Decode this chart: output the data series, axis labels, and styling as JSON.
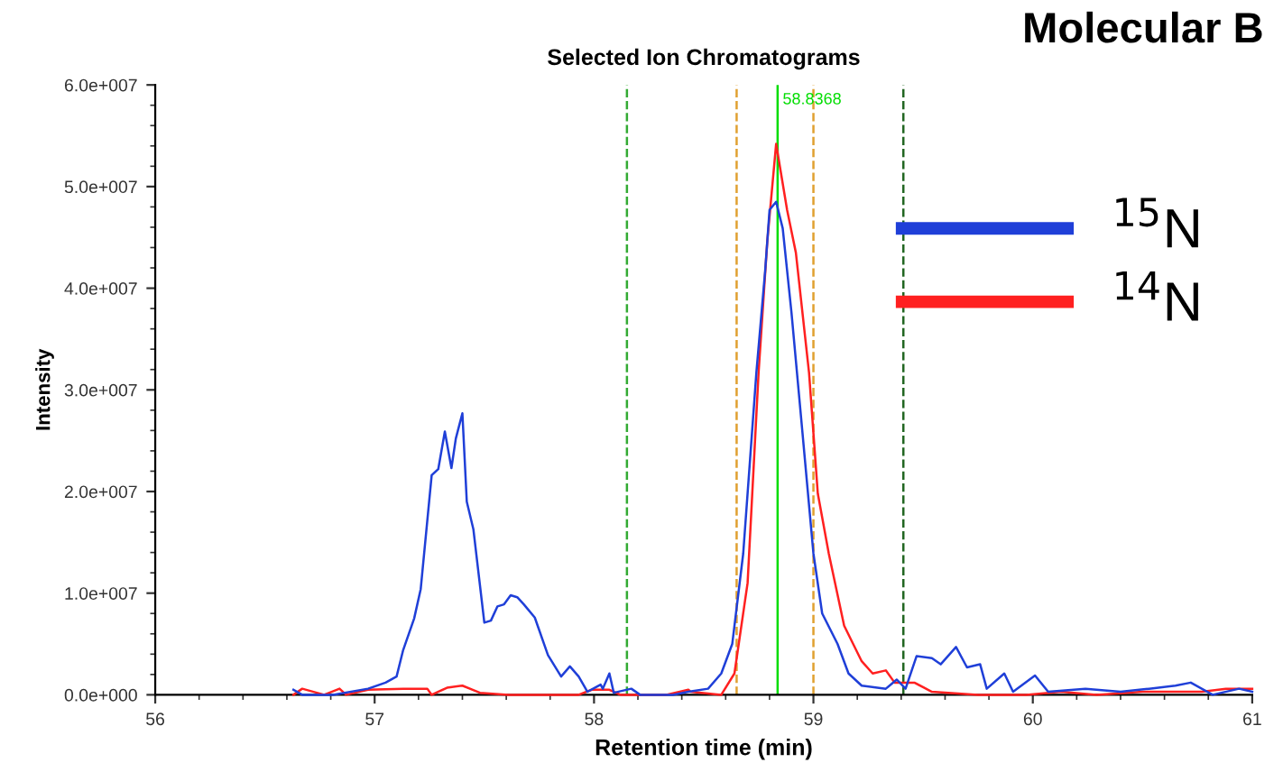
{
  "chart_data": {
    "type": "line",
    "title": "Selected Ion Chromatograms",
    "xlabel": "Retention time (min)",
    "ylabel": "Intensity",
    "annotations": [
      "Molecular B"
    ],
    "xlim": [
      56,
      61
    ],
    "xticks": [
      56,
      57,
      58,
      59,
      60,
      61
    ],
    "ylim": [
      0,
      60000000
    ],
    "yticks": [
      {
        "value": 0,
        "label": "0.0e+000"
      },
      {
        "value": 10000000,
        "label": "1.0e+007"
      },
      {
        "value": 20000000,
        "label": "2.0e+007"
      },
      {
        "value": 30000000,
        "label": "3.0e+007"
      },
      {
        "value": 40000000,
        "label": "4.0e+007"
      },
      {
        "value": 50000000,
        "label": "5.0e+007"
      },
      {
        "value": 60000000,
        "label": "6.0e+007"
      }
    ],
    "grid": false,
    "legend": "top right",
    "marker": "none",
    "line_style": "solid",
    "ref_lines": [
      {
        "axis": "x",
        "value": 58.15,
        "label": null,
        "color": "#33aa33",
        "line_style": "dashed"
      },
      {
        "axis": "x",
        "value": 58.65,
        "label": null,
        "color": "#e0a030",
        "line_style": "dashed"
      },
      {
        "axis": "x",
        "value": 58.8368,
        "label": "58.8368",
        "color": "#00dd00",
        "line_style": "solid"
      },
      {
        "axis": "x",
        "value": 59.0,
        "label": null,
        "color": "#e0a030",
        "line_style": "dashed"
      },
      {
        "axis": "x",
        "value": 59.41,
        "label": null,
        "color": "#226622",
        "line_style": "dashed"
      }
    ],
    "series": [
      {
        "name": "$^{15}$N",
        "color": "#1f3fd8",
        "x": [
          56.63,
          56.67,
          56.81,
          56.97,
          57.05,
          57.1,
          57.13,
          57.18,
          57.21,
          57.26,
          57.29,
          57.32,
          57.35,
          57.37,
          57.4,
          57.42,
          57.45,
          57.5,
          57.53,
          57.56,
          57.59,
          57.62,
          57.65,
          57.68,
          57.73,
          57.79,
          57.85,
          57.89,
          57.93,
          57.97,
          58.03,
          58.04,
          58.07,
          58.09,
          58.17,
          58.21,
          58.36,
          58.43,
          58.52,
          58.58,
          58.63,
          58.68,
          58.74,
          58.78,
          58.8,
          58.83,
          58.86,
          58.9,
          58.95,
          59.0,
          59.04,
          59.11,
          59.16,
          59.22,
          59.33,
          59.38,
          59.42,
          59.47,
          59.54,
          59.58,
          59.65,
          59.7,
          59.76,
          59.79,
          59.87,
          59.91,
          60.01,
          60.07,
          60.24,
          60.4,
          60.53,
          60.65,
          60.72,
          60.82,
          60.94,
          61.0
        ],
        "values": [
          500000,
          0,
          0,
          600000,
          1200000,
          1800000,
          4400000,
          7500000,
          10400000,
          21600000,
          22200000,
          25900000,
          22300000,
          25200000,
          27700000,
          19000000,
          16300000,
          7100000,
          7300000,
          8700000,
          8900000,
          9800000,
          9600000,
          8900000,
          7600000,
          3900000,
          1800000,
          2800000,
          1800000,
          300000,
          1000000,
          600000,
          2100000,
          200000,
          600000,
          0,
          0,
          300000,
          600000,
          2100000,
          5000000,
          13900000,
          31700000,
          41700000,
          47700000,
          48500000,
          45900000,
          37600000,
          25800000,
          13900000,
          8000000,
          5000000,
          2100000,
          900000,
          600000,
          1500000,
          600000,
          3800000,
          3600000,
          3000000,
          4700000,
          2700000,
          3000000,
          600000,
          2100000,
          300000,
          1900000,
          300000,
          600000,
          300000,
          600000,
          900000,
          1200000,
          0,
          600000,
          300000
        ]
      },
      {
        "name": "$^{14}$N",
        "color": "#ff2020",
        "x": [
          56.63,
          56.67,
          56.77,
          56.84,
          56.87,
          56.97,
          57.13,
          57.24,
          57.26,
          57.33,
          57.4,
          57.48,
          57.61,
          57.77,
          57.93,
          57.99,
          58.07,
          58.12,
          58.33,
          58.43,
          58.44,
          58.58,
          58.64,
          58.7,
          58.75,
          58.79,
          58.83,
          58.88,
          58.92,
          58.98,
          59.02,
          59.07,
          59.14,
          59.22,
          59.27,
          59.33,
          59.37,
          59.46,
          59.54,
          59.75,
          59.97,
          60.13,
          60.29,
          60.5,
          60.77,
          60.88,
          61.0
        ],
        "values": [
          0,
          600000,
          0,
          600000,
          0,
          500000,
          600000,
          600000,
          0,
          700000,
          900000,
          200000,
          0,
          0,
          0,
          500000,
          500000,
          0,
          0,
          500000,
          300000,
          0,
          2100000,
          11000000,
          31700000,
          44700000,
          54200000,
          47700000,
          43500000,
          31700000,
          19800000,
          13900000,
          6800000,
          3300000,
          2100000,
          2400000,
          1200000,
          1200000,
          300000,
          0,
          0,
          300000,
          0,
          300000,
          300000,
          600000,
          600000
        ]
      }
    ]
  }
}
